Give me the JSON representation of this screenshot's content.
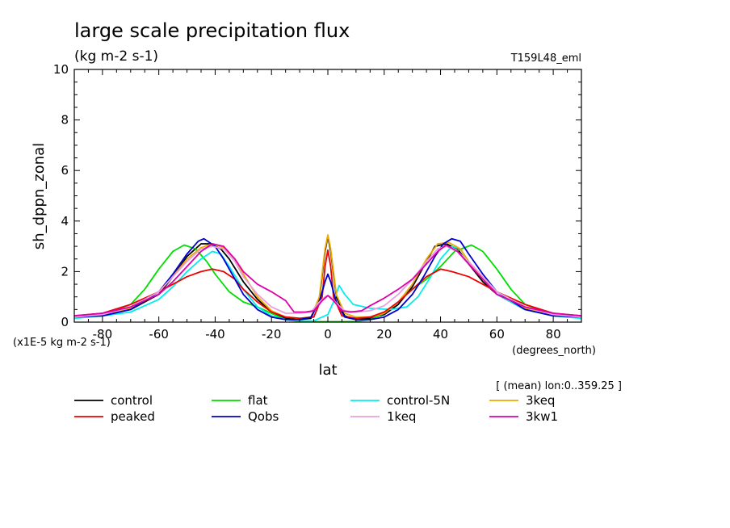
{
  "chart_data": {
    "type": "line",
    "title": "large scale precipitation flux",
    "subtitle": "(kg m-2 s-1)",
    "run_label": "T159L48_eml",
    "ylabel": "sh_dppn_zonal",
    "xlabel": "lat",
    "x_units": "(degrees_north)",
    "y_scale_note": "(x1E-5 kg m-2 s-1)",
    "mean_note": "[ (mean) lon:0..359.25 ]",
    "xlim": [
      -90,
      90
    ],
    "ylim": [
      0,
      10
    ],
    "x_ticks": [
      -80,
      -60,
      -40,
      -20,
      0,
      20,
      40,
      60,
      80
    ],
    "x_tick_labels": [
      "-80",
      "-60",
      "-40",
      "-20",
      "0",
      "20",
      "40",
      "60",
      "80"
    ],
    "y_ticks": [
      0,
      2,
      4,
      6,
      8,
      10
    ],
    "y_tick_labels": [
      "0",
      "2",
      "4",
      "6",
      "8",
      "10"
    ],
    "grid": false,
    "legend_position": "bottom",
    "series": [
      {
        "name": "control",
        "color": "#000000",
        "points": [
          [
            -90,
            0.2
          ],
          [
            -80,
            0.3
          ],
          [
            -70,
            0.5
          ],
          [
            -60,
            1.1
          ],
          [
            -55,
            1.8
          ],
          [
            -50,
            2.6
          ],
          [
            -45,
            3.1
          ],
          [
            -42,
            3.1
          ],
          [
            -38,
            2.9
          ],
          [
            -35,
            2.5
          ],
          [
            -30,
            1.6
          ],
          [
            -25,
            0.9
          ],
          [
            -20,
            0.4
          ],
          [
            -15,
            0.15
          ],
          [
            -10,
            0.1
          ],
          [
            -6,
            0.15
          ],
          [
            -3,
            0.9
          ],
          [
            -1,
            2.8
          ],
          [
            0,
            3.4
          ],
          [
            1,
            2.8
          ],
          [
            3,
            1.0
          ],
          [
            6,
            0.25
          ],
          [
            10,
            0.1
          ],
          [
            15,
            0.15
          ],
          [
            20,
            0.3
          ],
          [
            25,
            0.7
          ],
          [
            30,
            1.4
          ],
          [
            35,
            2.4
          ],
          [
            38,
            3.0
          ],
          [
            42,
            3.1
          ],
          [
            46,
            2.9
          ],
          [
            50,
            2.3
          ],
          [
            55,
            1.6
          ],
          [
            60,
            1.1
          ],
          [
            70,
            0.5
          ],
          [
            80,
            0.3
          ],
          [
            90,
            0.2
          ]
        ]
      },
      {
        "name": "flat",
        "color": "#00dd00",
        "points": [
          [
            -90,
            0.2
          ],
          [
            -80,
            0.3
          ],
          [
            -70,
            0.7
          ],
          [
            -65,
            1.3
          ],
          [
            -60,
            2.1
          ],
          [
            -55,
            2.8
          ],
          [
            -51,
            3.05
          ],
          [
            -47,
            2.9
          ],
          [
            -43,
            2.4
          ],
          [
            -40,
            1.9
          ],
          [
            -35,
            1.2
          ],
          [
            -30,
            0.8
          ],
          [
            -25,
            0.6
          ],
          [
            -20,
            0.35
          ],
          [
            -15,
            0.1
          ],
          [
            -10,
            0.03
          ],
          [
            -5,
            0.02
          ],
          [
            0,
            0.02
          ],
          [
            5,
            0.02
          ],
          [
            10,
            0.03
          ],
          [
            15,
            0.1
          ],
          [
            20,
            0.35
          ],
          [
            25,
            0.8
          ],
          [
            30,
            1.3
          ],
          [
            35,
            1.7
          ],
          [
            40,
            2.2
          ],
          [
            45,
            2.8
          ],
          [
            51,
            3.05
          ],
          [
            55,
            2.8
          ],
          [
            60,
            2.1
          ],
          [
            65,
            1.3
          ],
          [
            70,
            0.7
          ],
          [
            80,
            0.3
          ],
          [
            90,
            0.2
          ]
        ]
      },
      {
        "name": "control-5N",
        "color": "#00eeee",
        "points": [
          [
            -90,
            0.15
          ],
          [
            -80,
            0.25
          ],
          [
            -70,
            0.4
          ],
          [
            -60,
            0.9
          ],
          [
            -55,
            1.4
          ],
          [
            -50,
            2.0
          ],
          [
            -45,
            2.5
          ],
          [
            -41,
            2.8
          ],
          [
            -38,
            2.7
          ],
          [
            -35,
            2.2
          ],
          [
            -30,
            1.3
          ],
          [
            -25,
            0.6
          ],
          [
            -20,
            0.25
          ],
          [
            -15,
            0.1
          ],
          [
            -10,
            0.05
          ],
          [
            -5,
            0.05
          ],
          [
            0,
            0.3
          ],
          [
            2,
            0.8
          ],
          [
            4,
            1.45
          ],
          [
            6,
            1.1
          ],
          [
            9,
            0.7
          ],
          [
            15,
            0.55
          ],
          [
            22,
            0.5
          ],
          [
            28,
            0.6
          ],
          [
            32,
            1.0
          ],
          [
            36,
            1.7
          ],
          [
            40,
            2.5
          ],
          [
            44,
            3.0
          ],
          [
            47,
            2.9
          ],
          [
            50,
            2.4
          ],
          [
            55,
            1.7
          ],
          [
            60,
            1.1
          ],
          [
            70,
            0.5
          ],
          [
            80,
            0.25
          ],
          [
            90,
            0.15
          ]
        ]
      },
      {
        "name": "3keq",
        "color": "#eeaa00",
        "points": [
          [
            -90,
            0.2
          ],
          [
            -80,
            0.3
          ],
          [
            -70,
            0.55
          ],
          [
            -60,
            1.2
          ],
          [
            -55,
            1.8
          ],
          [
            -50,
            2.5
          ],
          [
            -45,
            2.95
          ],
          [
            -41,
            3.1
          ],
          [
            -37,
            2.95
          ],
          [
            -33,
            2.5
          ],
          [
            -30,
            1.9
          ],
          [
            -25,
            1.0
          ],
          [
            -20,
            0.45
          ],
          [
            -15,
            0.2
          ],
          [
            -10,
            0.15
          ],
          [
            -6,
            0.2
          ],
          [
            -3,
            1.0
          ],
          [
            -1,
            2.9
          ],
          [
            0,
            3.45
          ],
          [
            1,
            2.9
          ],
          [
            3,
            1.1
          ],
          [
            6,
            0.35
          ],
          [
            10,
            0.2
          ],
          [
            15,
            0.2
          ],
          [
            20,
            0.35
          ],
          [
            25,
            0.8
          ],
          [
            30,
            1.5
          ],
          [
            35,
            2.5
          ],
          [
            39,
            3.1
          ],
          [
            43,
            3.15
          ],
          [
            47,
            2.9
          ],
          [
            50,
            2.4
          ],
          [
            55,
            1.7
          ],
          [
            60,
            1.2
          ],
          [
            70,
            0.55
          ],
          [
            80,
            0.3
          ],
          [
            90,
            0.2
          ]
        ]
      },
      {
        "name": "peaked",
        "color": "#ee0000",
        "points": [
          [
            -90,
            0.25
          ],
          [
            -80,
            0.35
          ],
          [
            -70,
            0.7
          ],
          [
            -60,
            1.2
          ],
          [
            -55,
            1.5
          ],
          [
            -50,
            1.8
          ],
          [
            -45,
            2.0
          ],
          [
            -41,
            2.1
          ],
          [
            -37,
            2.0
          ],
          [
            -33,
            1.7
          ],
          [
            -30,
            1.3
          ],
          [
            -25,
            0.8
          ],
          [
            -20,
            0.4
          ],
          [
            -15,
            0.2
          ],
          [
            -10,
            0.15
          ],
          [
            -5,
            0.2
          ],
          [
            -2,
            1.0
          ],
          [
            -1,
            2.2
          ],
          [
            0,
            2.85
          ],
          [
            1,
            2.2
          ],
          [
            2,
            1.0
          ],
          [
            5,
            0.25
          ],
          [
            10,
            0.15
          ],
          [
            15,
            0.2
          ],
          [
            20,
            0.4
          ],
          [
            25,
            0.8
          ],
          [
            30,
            1.3
          ],
          [
            35,
            1.8
          ],
          [
            40,
            2.1
          ],
          [
            44,
            2.0
          ],
          [
            50,
            1.8
          ],
          [
            55,
            1.5
          ],
          [
            60,
            1.2
          ],
          [
            70,
            0.7
          ],
          [
            80,
            0.35
          ],
          [
            90,
            0.25
          ]
        ]
      },
      {
        "name": "Qobs",
        "color": "#0000cc",
        "points": [
          [
            -90,
            0.2
          ],
          [
            -80,
            0.25
          ],
          [
            -70,
            0.5
          ],
          [
            -60,
            1.2
          ],
          [
            -55,
            1.9
          ],
          [
            -50,
            2.7
          ],
          [
            -46,
            3.2
          ],
          [
            -44,
            3.3
          ],
          [
            -40,
            3.0
          ],
          [
            -37,
            2.5
          ],
          [
            -33,
            1.7
          ],
          [
            -30,
            1.1
          ],
          [
            -25,
            0.5
          ],
          [
            -20,
            0.2
          ],
          [
            -15,
            0.1
          ],
          [
            -10,
            0.1
          ],
          [
            -6,
            0.2
          ],
          [
            -3,
            0.8
          ],
          [
            -1,
            1.6
          ],
          [
            0,
            1.9
          ],
          [
            1,
            1.6
          ],
          [
            3,
            0.8
          ],
          [
            6,
            0.2
          ],
          [
            10,
            0.1
          ],
          [
            15,
            0.1
          ],
          [
            20,
            0.2
          ],
          [
            25,
            0.5
          ],
          [
            30,
            1.1
          ],
          [
            34,
            1.8
          ],
          [
            38,
            2.6
          ],
          [
            41,
            3.1
          ],
          [
            44,
            3.3
          ],
          [
            47,
            3.2
          ],
          [
            50,
            2.7
          ],
          [
            55,
            1.9
          ],
          [
            60,
            1.2
          ],
          [
            70,
            0.5
          ],
          [
            80,
            0.25
          ],
          [
            90,
            0.2
          ]
        ]
      },
      {
        "name": "1keq",
        "color": "#e8a0e0",
        "points": [
          [
            -90,
            0.2
          ],
          [
            -80,
            0.3
          ],
          [
            -70,
            0.6
          ],
          [
            -60,
            1.2
          ],
          [
            -55,
            1.8
          ],
          [
            -50,
            2.4
          ],
          [
            -45,
            2.9
          ],
          [
            -41,
            3.0
          ],
          [
            -37,
            2.9
          ],
          [
            -33,
            2.4
          ],
          [
            -30,
            1.8
          ],
          [
            -25,
            1.1
          ],
          [
            -20,
            0.6
          ],
          [
            -15,
            0.35
          ],
          [
            -10,
            0.35
          ],
          [
            -6,
            0.4
          ],
          [
            -3,
            0.8
          ],
          [
            -1,
            1.0
          ],
          [
            0,
            1.05
          ],
          [
            1,
            1.0
          ],
          [
            3,
            0.75
          ],
          [
            6,
            0.45
          ],
          [
            10,
            0.4
          ],
          [
            15,
            0.45
          ],
          [
            20,
            0.65
          ],
          [
            25,
            1.1
          ],
          [
            30,
            1.7
          ],
          [
            35,
            2.4
          ],
          [
            39,
            2.9
          ],
          [
            42,
            3.0
          ],
          [
            46,
            2.8
          ],
          [
            50,
            2.4
          ],
          [
            55,
            1.8
          ],
          [
            60,
            1.2
          ],
          [
            70,
            0.6
          ],
          [
            80,
            0.3
          ],
          [
            90,
            0.2
          ]
        ]
      },
      {
        "name": "3kw1",
        "color": "#dd00aa",
        "points": [
          [
            -90,
            0.25
          ],
          [
            -80,
            0.35
          ],
          [
            -70,
            0.6
          ],
          [
            -60,
            1.1
          ],
          [
            -55,
            1.6
          ],
          [
            -50,
            2.2
          ],
          [
            -45,
            2.8
          ],
          [
            -41,
            3.1
          ],
          [
            -37,
            3.0
          ],
          [
            -33,
            2.5
          ],
          [
            -30,
            2.0
          ],
          [
            -25,
            1.5
          ],
          [
            -20,
            1.2
          ],
          [
            -15,
            0.85
          ],
          [
            -12,
            0.4
          ],
          [
            -8,
            0.4
          ],
          [
            -5,
            0.45
          ],
          [
            -2,
            0.85
          ],
          [
            0,
            1.05
          ],
          [
            2,
            0.85
          ],
          [
            5,
            0.45
          ],
          [
            8,
            0.4
          ],
          [
            12,
            0.45
          ],
          [
            15,
            0.65
          ],
          [
            20,
            0.95
          ],
          [
            25,
            1.3
          ],
          [
            30,
            1.7
          ],
          [
            35,
            2.3
          ],
          [
            39,
            2.8
          ],
          [
            42,
            3.05
          ],
          [
            46,
            2.8
          ],
          [
            50,
            2.3
          ],
          [
            55,
            1.7
          ],
          [
            60,
            1.1
          ],
          [
            70,
            0.6
          ],
          [
            80,
            0.35
          ],
          [
            90,
            0.25
          ]
        ]
      }
    ],
    "legend_rows": [
      [
        "control",
        "flat",
        "control-5N",
        "3keq"
      ],
      [
        "peaked",
        "Qobs",
        "1keq",
        "3kw1"
      ]
    ]
  }
}
